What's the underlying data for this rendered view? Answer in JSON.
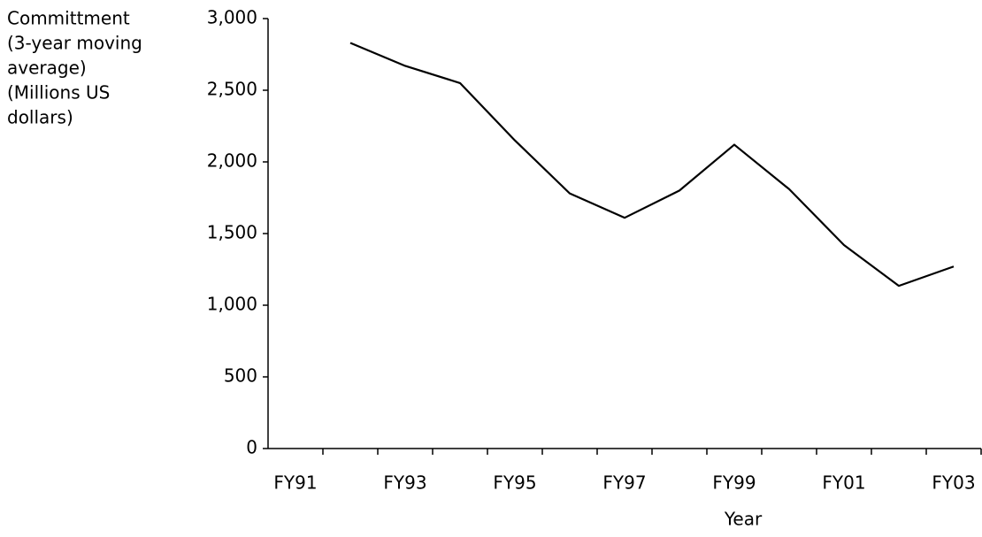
{
  "chart_data": {
    "type": "line",
    "y_label": [
      "Committment",
      "(3-year moving",
      "average)",
      "(Millions US",
      "dollars)"
    ],
    "x_label": "Year",
    "categories": [
      "FY91",
      null,
      "FY93",
      null,
      "FY95",
      null,
      "FY97",
      null,
      "FY99",
      null,
      "FY01",
      null,
      "FY03"
    ],
    "series": [
      {
        "name": null,
        "color": "#000000",
        "values": [
          null,
          2830,
          2670,
          2550,
          2150,
          1780,
          1610,
          1800,
          2120,
          1810,
          1420,
          1135,
          1270
        ]
      }
    ],
    "ylim": [
      0,
      3000
    ],
    "yticks": [
      0,
      500,
      {
        "value": 1000,
        "label": "1,000"
      },
      {
        "value": 1500,
        "label": "1,500"
      },
      {
        "value": 2000,
        "label": "2,000"
      },
      {
        "value": 2500,
        "label": "2,500"
      },
      {
        "value": 3000,
        "label": "3,000"
      }
    ],
    "grid": false
  }
}
